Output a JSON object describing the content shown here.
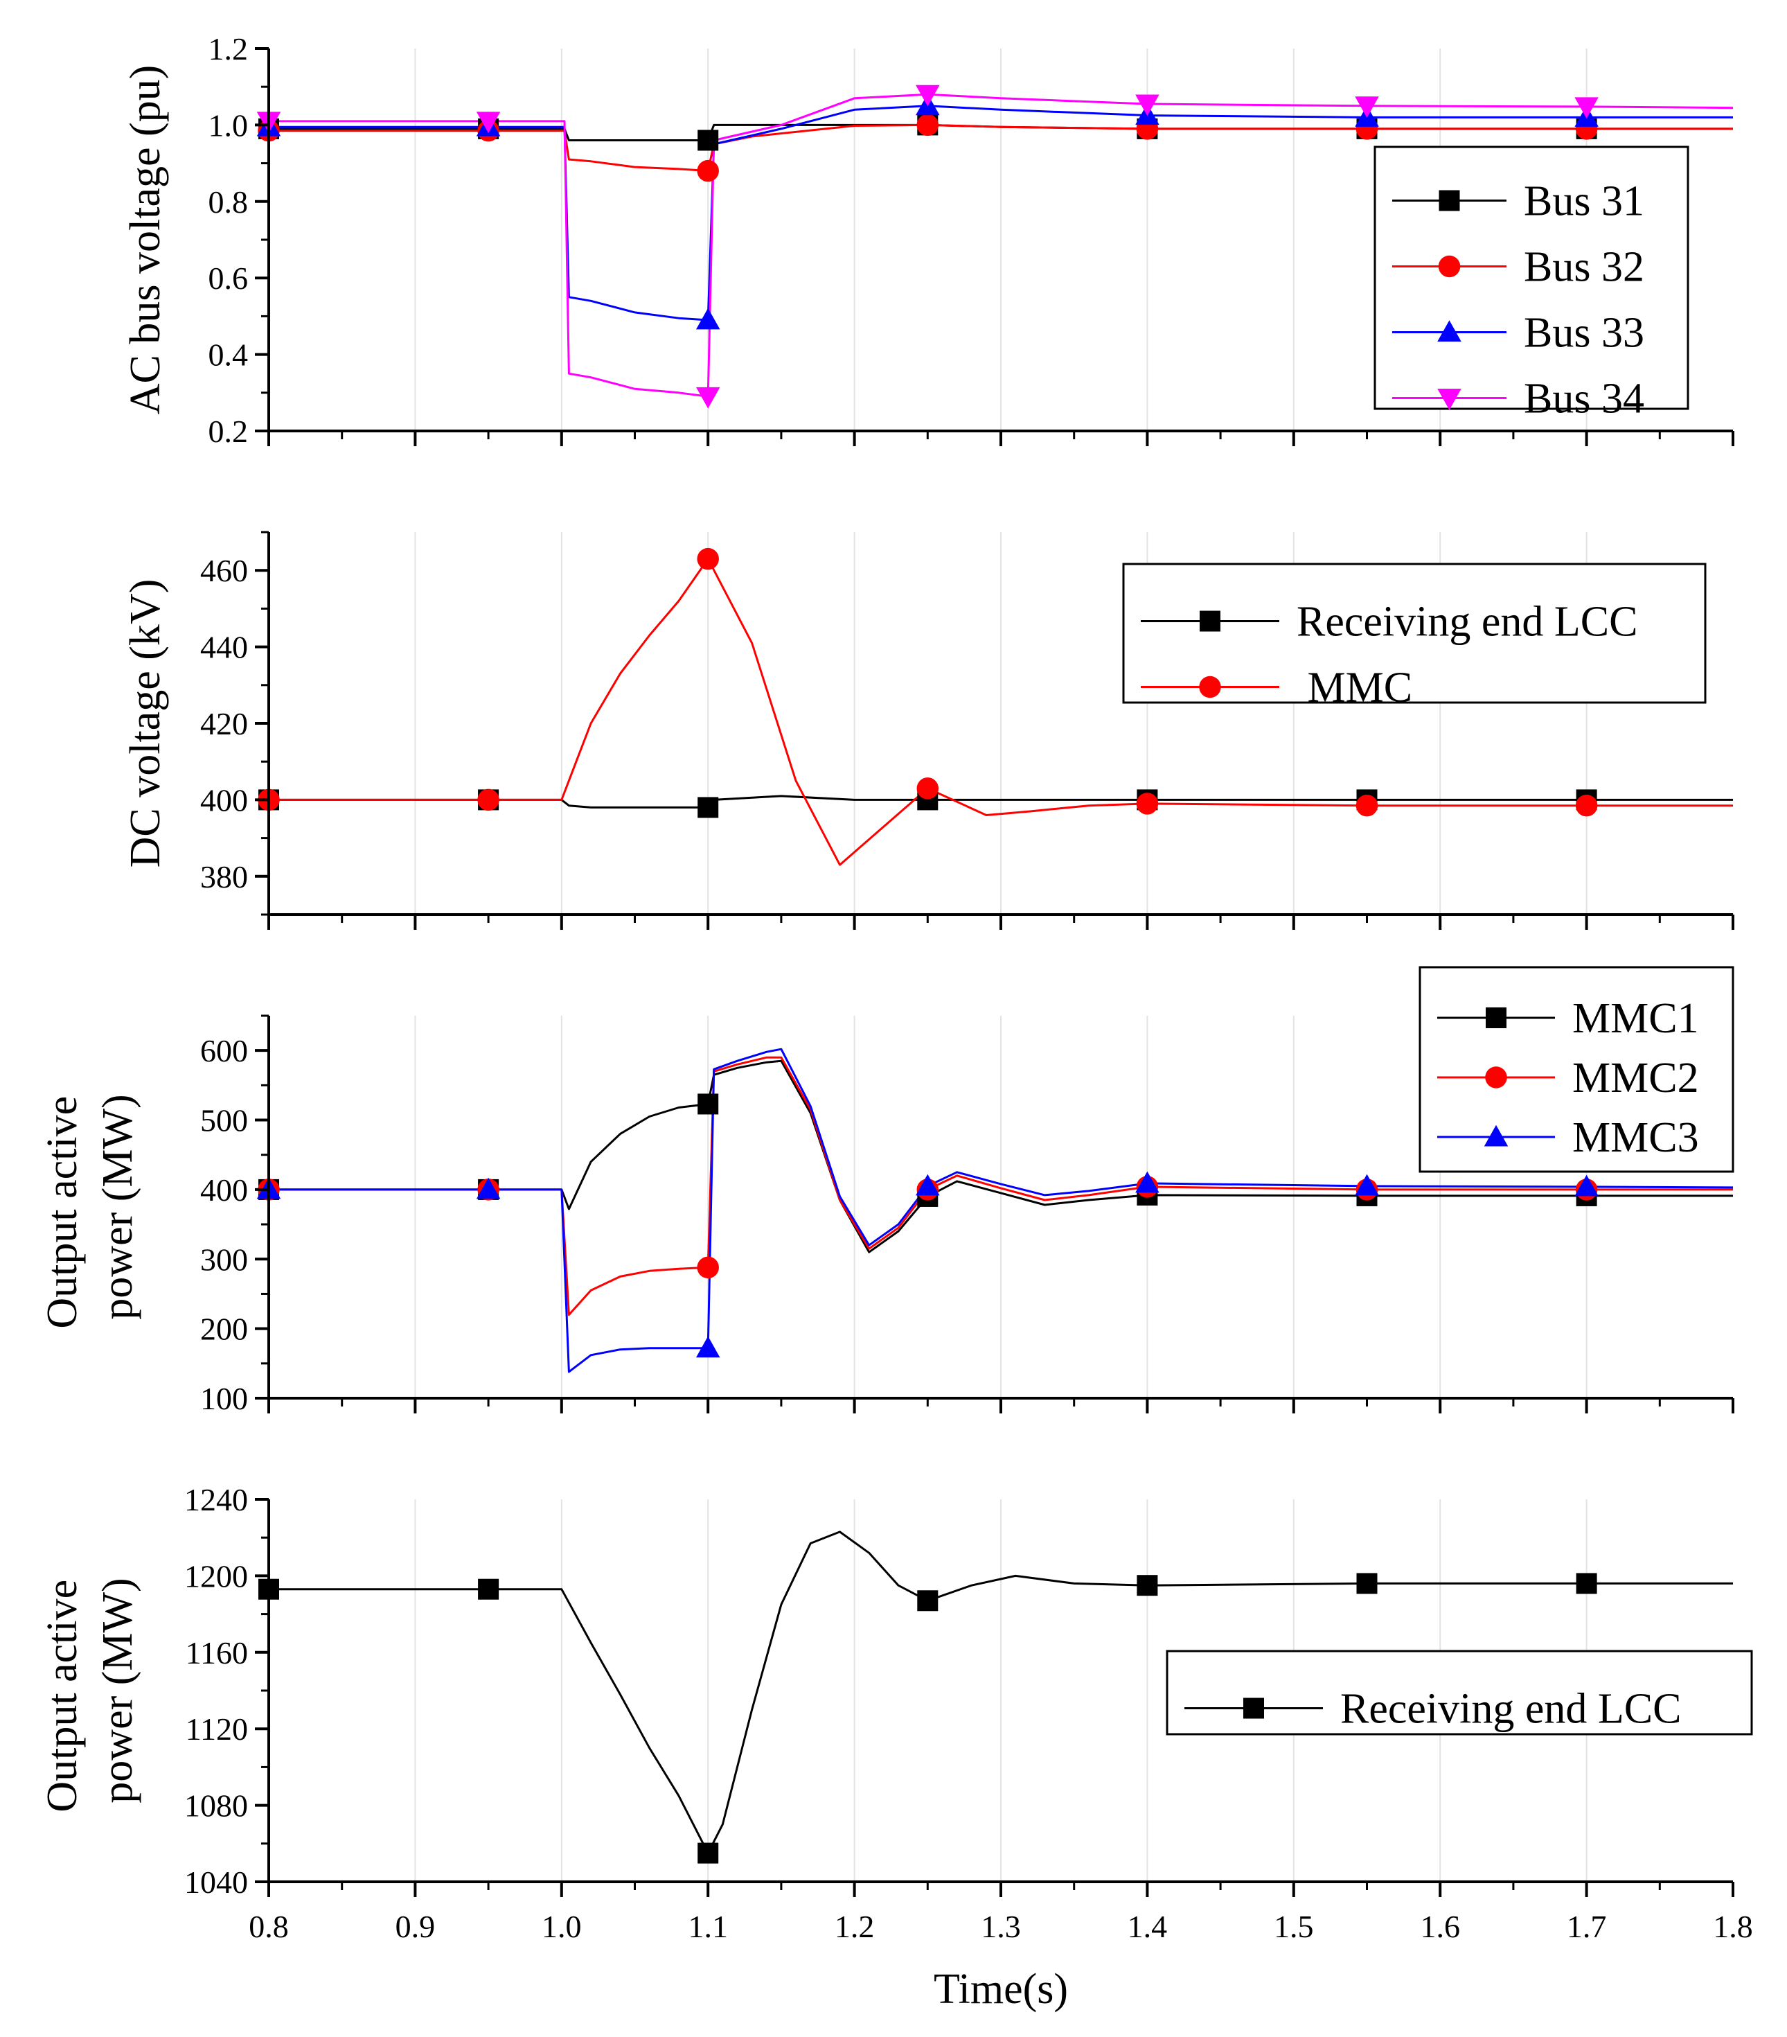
{
  "chart_data": [
    {
      "type": "line",
      "ylabel": "AC bus voltage (pu)",
      "xlabel": "",
      "xlim": [
        0.8,
        1.8
      ],
      "ylim": [
        0.2,
        1.2
      ],
      "yticks": [
        0.2,
        0.4,
        0.6,
        0.8,
        1.0,
        1.2
      ],
      "ytick_labels": [
        "0.2",
        "0.4",
        "0.6",
        "0.8",
        "1.0",
        "1.2"
      ],
      "grid": true,
      "legend_position": "right",
      "series": [
        {
          "name": "Bus 31",
          "color": "#000000",
          "marker": "square",
          "x": [
            0.8,
            0.95,
            1.0,
            1.002,
            1.005,
            1.1,
            1.104,
            1.12,
            1.18,
            1.25,
            1.3,
            1.4,
            1.5,
            1.55,
            1.7,
            1.8
          ],
          "y": [
            0.99,
            0.99,
            0.99,
            0.99,
            0.96,
            0.96,
            1.0,
            1.0,
            1.0,
            1.0,
            0.995,
            0.99,
            0.99,
            0.99,
            0.99,
            0.99
          ]
        },
        {
          "name": "Bus 32",
          "color": "#ff0000",
          "marker": "circle",
          "x": [
            0.8,
            0.95,
            1.0,
            1.002,
            1.005,
            1.02,
            1.05,
            1.08,
            1.1,
            1.104,
            1.13,
            1.2,
            1.25,
            1.3,
            1.4,
            1.55,
            1.7,
            1.8
          ],
          "y": [
            0.985,
            0.985,
            0.985,
            0.985,
            0.91,
            0.905,
            0.89,
            0.885,
            0.88,
            0.95,
            0.97,
            0.998,
            1.0,
            0.995,
            0.99,
            0.99,
            0.99,
            0.99
          ]
        },
        {
          "name": "Bus 33",
          "color": "#0000ff",
          "marker": "triangle-up",
          "x": [
            0.8,
            0.95,
            1.0,
            1.002,
            1.005,
            1.02,
            1.05,
            1.08,
            1.1,
            1.104,
            1.15,
            1.2,
            1.25,
            1.3,
            1.4,
            1.55,
            1.7,
            1.8
          ],
          "y": [
            0.995,
            0.995,
            0.995,
            0.995,
            0.55,
            0.54,
            0.51,
            0.495,
            0.49,
            0.95,
            0.99,
            1.04,
            1.05,
            1.04,
            1.025,
            1.02,
            1.02,
            1.02
          ]
        },
        {
          "name": "Bus 34",
          "color": "#ff00ff",
          "marker": "triangle-down",
          "x": [
            0.8,
            0.95,
            1.0,
            1.002,
            1.005,
            1.02,
            1.05,
            1.08,
            1.1,
            1.104,
            1.15,
            1.2,
            1.25,
            1.3,
            1.4,
            1.55,
            1.7,
            1.8
          ],
          "y": [
            1.01,
            1.01,
            1.01,
            1.01,
            0.35,
            0.34,
            0.31,
            0.3,
            0.29,
            0.96,
            1.0,
            1.07,
            1.08,
            1.07,
            1.055,
            1.05,
            1.048,
            1.045
          ]
        }
      ]
    },
    {
      "type": "line",
      "ylabel": "DC voltage (kV)",
      "xlabel": "",
      "xlim": [
        0.8,
        1.8
      ],
      "ylim": [
        370,
        470
      ],
      "yticks": [
        380,
        400,
        420,
        440,
        460
      ],
      "ytick_labels": [
        "380",
        "400",
        "420",
        "440",
        "460"
      ],
      "grid": true,
      "legend_position": "top-right",
      "series": [
        {
          "name": "Receiving end LCC",
          "color": "#000000",
          "marker": "square",
          "x": [
            0.8,
            0.95,
            1.0,
            1.005,
            1.02,
            1.05,
            1.1,
            1.104,
            1.15,
            1.2,
            1.25,
            1.3,
            1.4,
            1.55,
            1.7,
            1.8
          ],
          "y": [
            400,
            400,
            400,
            398.5,
            398,
            398,
            398,
            400,
            401,
            400,
            400,
            400,
            400,
            400,
            400,
            400
          ]
        },
        {
          "name": " MMC",
          "color": "#ff0000",
          "marker": "circle",
          "x": [
            0.8,
            0.95,
            1.0,
            1.01,
            1.02,
            1.04,
            1.06,
            1.08,
            1.1,
            1.13,
            1.16,
            1.19,
            1.22,
            1.25,
            1.29,
            1.32,
            1.36,
            1.4,
            1.55,
            1.7,
            1.8
          ],
          "y": [
            400,
            400,
            400,
            410,
            420,
            433,
            443,
            452,
            463,
            441,
            405,
            383,
            393,
            403,
            396,
            397,
            398.5,
            399,
            398.5,
            398.5,
            398.5
          ]
        }
      ]
    },
    {
      "type": "line",
      "ylabel": "Output active power (MW)",
      "ylabel_lines": [
        "Output active",
        "power (MW)"
      ],
      "xlabel": "",
      "xlim": [
        0.8,
        1.8
      ],
      "ylim": [
        100,
        650
      ],
      "yticks": [
        100,
        200,
        300,
        400,
        500,
        600
      ],
      "ytick_labels": [
        "100",
        "200",
        "300",
        "400",
        "500",
        "600"
      ],
      "grid": true,
      "legend_position": "top-right",
      "series": [
        {
          "name": "MMC1",
          "color": "#000000",
          "marker": "square",
          "x": [
            0.8,
            0.95,
            1.0,
            1.005,
            1.02,
            1.04,
            1.06,
            1.08,
            1.1,
            1.104,
            1.12,
            1.14,
            1.15,
            1.17,
            1.19,
            1.21,
            1.23,
            1.25,
            1.27,
            1.3,
            1.33,
            1.36,
            1.4,
            1.55,
            1.7,
            1.8
          ],
          "y": [
            400,
            400,
            400,
            372,
            440,
            480,
            505,
            518,
            523,
            565,
            575,
            583,
            585,
            510,
            385,
            310,
            340,
            390,
            412,
            395,
            378,
            385,
            392,
            391,
            391,
            391
          ]
        },
        {
          "name": "MMC2",
          "color": "#ff0000",
          "marker": "circle",
          "x": [
            0.8,
            0.95,
            1.0,
            1.005,
            1.02,
            1.04,
            1.06,
            1.08,
            1.1,
            1.104,
            1.12,
            1.14,
            1.15,
            1.17,
            1.19,
            1.21,
            1.23,
            1.25,
            1.27,
            1.3,
            1.33,
            1.36,
            1.4,
            1.55,
            1.7,
            1.8
          ],
          "y": [
            400,
            400,
            400,
            220,
            255,
            275,
            283,
            286,
            288,
            570,
            580,
            590,
            590,
            515,
            385,
            315,
            345,
            400,
            420,
            402,
            385,
            392,
            404,
            400,
            400,
            400
          ]
        },
        {
          "name": "MMC3",
          "color": "#0000ff",
          "marker": "triangle-up",
          "x": [
            0.8,
            0.95,
            1.0,
            1.005,
            1.02,
            1.04,
            1.06,
            1.08,
            1.1,
            1.104,
            1.12,
            1.14,
            1.15,
            1.17,
            1.19,
            1.21,
            1.23,
            1.25,
            1.27,
            1.3,
            1.33,
            1.36,
            1.4,
            1.55,
            1.7,
            1.8
          ],
          "y": [
            400,
            400,
            400,
            138,
            162,
            170,
            172,
            172,
            172,
            573,
            585,
            598,
            602,
            520,
            390,
            320,
            350,
            405,
            425,
            408,
            392,
            398,
            409,
            405,
            404,
            403
          ]
        }
      ]
    },
    {
      "type": "line",
      "ylabel": "Output active power (MW)",
      "ylabel_lines": [
        "Output active",
        "power (MW)"
      ],
      "xlabel": "Time(s)",
      "xlim": [
        0.8,
        1.8
      ],
      "ylim": [
        1040,
        1240
      ],
      "yticks": [
        1040,
        1080,
        1120,
        1160,
        1200,
        1240
      ],
      "ytick_labels": [
        "1040",
        "1080",
        "1120",
        "1160",
        "1200",
        "1240"
      ],
      "xticks": [
        0.8,
        0.9,
        1.0,
        1.1,
        1.2,
        1.3,
        1.4,
        1.5,
        1.6,
        1.7,
        1.8
      ],
      "xtick_labels": [
        "0.8",
        "0.9",
        "1.0",
        "1.1",
        "1.2",
        "1.3",
        "1.4",
        "1.5",
        "1.6",
        "1.7",
        "1.8"
      ],
      "grid": true,
      "legend_position": "right",
      "series": [
        {
          "name": "Receiving end LCC",
          "color": "#000000",
          "marker": "square",
          "x": [
            0.8,
            0.95,
            1.0,
            1.02,
            1.04,
            1.06,
            1.08,
            1.1,
            1.11,
            1.13,
            1.15,
            1.17,
            1.19,
            1.21,
            1.23,
            1.25,
            1.28,
            1.31,
            1.35,
            1.4,
            1.55,
            1.7,
            1.8
          ],
          "y": [
            1193,
            1193,
            1193,
            1165,
            1138,
            1110,
            1085,
            1055,
            1070,
            1130,
            1185,
            1217,
            1223,
            1212,
            1195,
            1187,
            1195,
            1200,
            1196,
            1195,
            1196,
            1196,
            1196
          ]
        }
      ]
    }
  ]
}
